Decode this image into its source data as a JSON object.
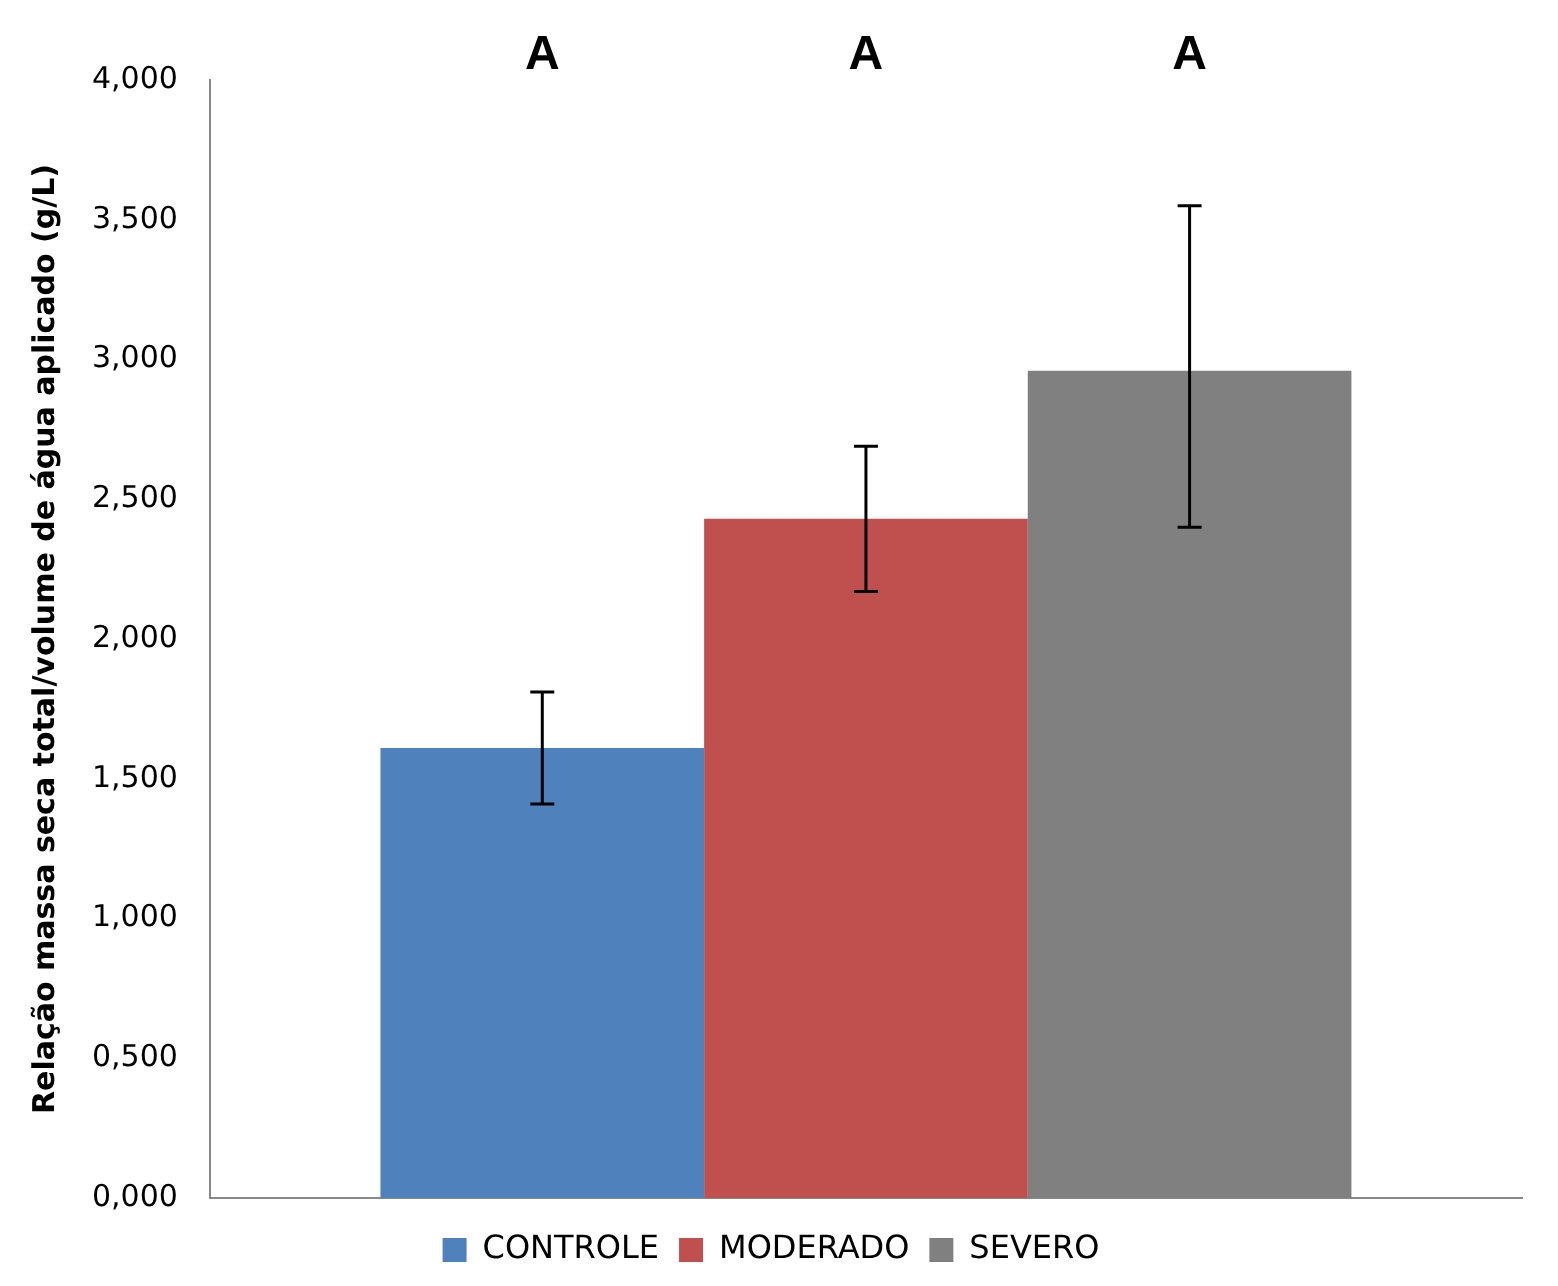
{
  "chart_data": {
    "type": "bar",
    "ylabel": "Relação massa seca total/volume de água aplicado (g/L)",
    "categories": [
      null
    ],
    "series": [
      {
        "name": "CONTROLE",
        "color": "#4f81bd",
        "values": [
          1.61
        ],
        "errors": [
          [
            1.41,
            1.81
          ]
        ]
      },
      {
        "name": "MODERADO",
        "color": "#c0504d",
        "values": [
          2.43
        ],
        "errors": [
          [
            2.17,
            2.69
          ]
        ]
      },
      {
        "name": "SEVERO",
        "color": "#808080",
        "values": [
          2.96
        ],
        "errors": [
          [
            2.4,
            3.55
          ]
        ]
      }
    ],
    "ylim": [
      0,
      4
    ],
    "yticks": [
      {
        "value": 0,
        "label": "0,000"
      },
      {
        "value": 0.5,
        "label": "0,500"
      },
      {
        "value": 1,
        "label": "1,000"
      },
      {
        "value": 1.5,
        "label": "1,500"
      },
      {
        "value": 2,
        "label": "2,000"
      },
      {
        "value": 2.5,
        "label": "2,500"
      },
      {
        "value": 3,
        "label": "3,000"
      },
      {
        "value": 3.5,
        "label": "3,500"
      },
      {
        "value": 4,
        "label": "4,000"
      }
    ],
    "annotations": [
      "A",
      "A",
      "A"
    ],
    "grid": false,
    "legend": "bottom"
  }
}
